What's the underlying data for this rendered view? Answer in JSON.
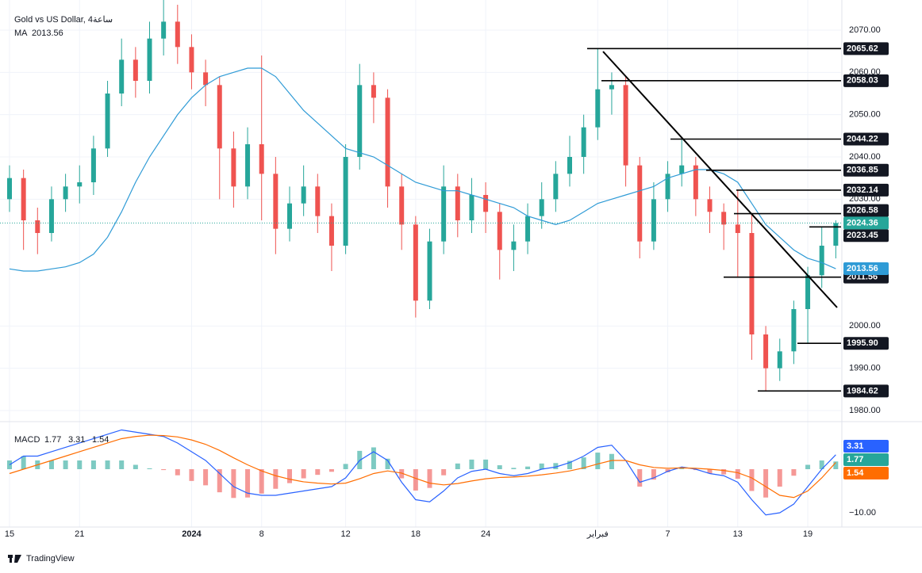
{
  "header": {
    "symbol": "Gold vs US Dollar, 4ساعة"
  },
  "footer": {
    "brand": "TradingView"
  },
  "chart_data": [
    {
      "type": "candlestick",
      "categories": [
        "15",
        null,
        null,
        null,
        null,
        "21",
        null,
        null,
        null,
        null,
        null,
        null,
        null,
        "2024",
        null,
        null,
        null,
        null,
        "8",
        null,
        null,
        null,
        null,
        null,
        "12",
        null,
        null,
        null,
        null,
        "18",
        null,
        null,
        null,
        null,
        "24",
        null,
        null,
        null,
        null,
        null,
        null,
        null,
        "فبراير",
        null,
        null,
        null,
        null,
        "7",
        null,
        null,
        null,
        null,
        "13",
        null,
        null,
        null,
        null,
        "19",
        null,
        null
      ],
      "open": [
        2030,
        2035,
        2025,
        2022,
        2030,
        2033,
        2034,
        2042,
        2055,
        2063,
        2058,
        2068,
        2072,
        2066,
        2060,
        2057,
        2042,
        2033,
        2043,
        2036,
        2023,
        2029,
        2033,
        2026,
        2019,
        2040,
        2057,
        2054,
        2033,
        2024,
        2006,
        2020,
        2033,
        2025,
        2031,
        2027,
        2018,
        2020,
        2026,
        2030,
        2036,
        2040,
        2047,
        2056,
        2057,
        2038,
        2020,
        2030,
        2036,
        2038,
        2030,
        2027,
        2024,
        2022,
        1998,
        1990,
        1994,
        2004,
        2012,
        2019
      ],
      "high": [
        2038,
        2037,
        2028,
        2033,
        2036,
        2038,
        2045,
        2058,
        2068,
        2066,
        2072,
        2080,
        2076,
        2069,
        2063,
        2059,
        2046,
        2047,
        2064,
        2040,
        2033,
        2038,
        2036,
        2029,
        2043,
        2062,
        2060,
        2056,
        2036,
        2026,
        2023,
        2038,
        2036,
        2035,
        2034,
        2029,
        2024,
        2029,
        2034,
        2039,
        2045,
        2050,
        2065.62,
        2060,
        2059,
        2040,
        2034,
        2039,
        2044.22,
        2040,
        2033,
        2029,
        2032.14,
        2026.58,
        2000,
        1997,
        2006,
        2014,
        2023.45,
        2025
      ],
      "low": [
        2027,
        2018,
        2017,
        2020,
        2027,
        2029,
        2031,
        2040,
        2052,
        2054,
        2055,
        2064,
        2062,
        2056,
        2052,
        2030,
        2028,
        2030,
        2025,
        2017,
        2020,
        2026,
        2022,
        2013,
        2017,
        2037,
        2048,
        2028,
        2018,
        2002,
        2004,
        2017,
        2021,
        2022,
        2022,
        2011,
        2013,
        2017,
        2023,
        2027,
        2033,
        2036,
        2044,
        2050,
        2033,
        2016,
        2018,
        2027,
        2033,
        2026,
        2022,
        2018,
        2011.56,
        1992,
        1984.62,
        1987,
        1991,
        1995.9,
        2009,
        2016
      ],
      "close": [
        2035,
        2025,
        2022,
        2030,
        2033,
        2034,
        2042,
        2055,
        2063,
        2058,
        2068,
        2072,
        2066,
        2060,
        2057,
        2042,
        2033,
        2043,
        2036,
        2023,
        2029,
        2033,
        2026,
        2019,
        2040,
        2057,
        2054,
        2033,
        2024,
        2006,
        2020,
        2033,
        2025,
        2031,
        2027,
        2018,
        2020,
        2026,
        2030,
        2036,
        2040,
        2047,
        2056,
        2057,
        2038,
        2020,
        2030,
        2036,
        2038,
        2030,
        2027,
        2024,
        2022,
        1998,
        1990,
        1994,
        2004,
        2012,
        2019,
        2024.36
      ],
      "up_color": "#26a69a",
      "down_color": "#ef5350",
      "ma": {
        "name": "MA",
        "color": "#2f9bd6",
        "values": [
          2013.5,
          2013,
          2013,
          2013.5,
          2014,
          2015,
          2017,
          2021,
          2027,
          2034,
          2040,
          2045,
          2050,
          2054,
          2057,
          2059,
          2060,
          2061,
          2061,
          2059,
          2055,
          2051,
          2048,
          2045,
          2042,
          2041,
          2040,
          2038,
          2036,
          2034,
          2033,
          2032,
          2032,
          2031,
          2030,
          2029,
          2028,
          2026,
          2025,
          2024,
          2025,
          2027,
          2029,
          2030,
          2031,
          2032,
          2033,
          2035,
          2036,
          2037,
          2037,
          2036,
          2034,
          2029,
          2024,
          2021,
          2018,
          2016,
          2015,
          2013.56
        ]
      },
      "levels": [
        2065.62,
        2058.03,
        2044.22,
        2036.85,
        2032.14,
        2026.58,
        2023.45,
        2011.56,
        {
          "value": 1995.9,
          "label": "1995.90"
        },
        1984.62
      ],
      "ylim": [
        1977.75,
        2077.125
      ],
      "yticks": [
        {
          "value": 2070,
          "label": "2070.00"
        },
        {
          "value": 2060,
          "label": "2060.00"
        },
        {
          "value": 2050,
          "label": "2050.00"
        },
        {
          "value": 2040,
          "label": "2040.00"
        },
        {
          "value": 2030,
          "label": "2030.00"
        },
        {
          "value": 2000,
          "label": "2000.00"
        },
        {
          "value": 1990,
          "label": "1990.00"
        },
        {
          "value": 1980,
          "label": "1980.00"
        }
      ],
      "grid": true
    },
    {
      "type": "macd",
      "title": "MACD",
      "histogram": {
        "up_color": "#26a69a",
        "down_color": "#ef5350",
        "values": [
          2,
          3,
          2,
          2,
          2,
          2,
          2,
          2,
          2,
          1,
          0.2,
          -0.2,
          -1.4,
          -2.7,
          -3.7,
          -5.3,
          -6.6,
          -6.5,
          -5.6,
          -4.5,
          -3.2,
          -2.1,
          -1.3,
          -0.6,
          1.2,
          4.2,
          5,
          2.4,
          -2.1,
          -4.9,
          -4.3,
          -1.4,
          1.3,
          2.2,
          2.2,
          0.9,
          0.3,
          0.6,
          1.3,
          1.4,
          1.9,
          2.7,
          3.8,
          3.5,
          0,
          -4,
          -2.4,
          -0.7,
          0.2,
          -0.2,
          -1,
          -1.2,
          -2.2,
          -5,
          -6.5,
          -4,
          -1.5,
          1,
          2,
          1.77
        ]
      },
      "macd": {
        "color": "#2962ff",
        "values": [
          1,
          3,
          3,
          4,
          5,
          6,
          7,
          8,
          9,
          8.5,
          8,
          7.5,
          6,
          4,
          2,
          -1,
          -4,
          -5.5,
          -6,
          -6,
          -5.5,
          -5,
          -4.5,
          -4,
          -2,
          2,
          4,
          2,
          -3,
          -7,
          -7.5,
          -5,
          -2,
          -0.5,
          0,
          -1,
          -1.5,
          -1,
          0,
          0.5,
          1.5,
          3,
          5,
          5.5,
          2,
          -3,
          -2,
          -0.5,
          0.5,
          0,
          -1,
          -1.5,
          -3,
          -7,
          -10.5,
          -10,
          -8,
          -4,
          0,
          3.31
        ]
      },
      "signal": {
        "color": "#ff6d00",
        "values": [
          -1,
          0,
          1,
          2,
          3,
          4,
          5,
          6,
          7,
          7.5,
          7.8,
          7.7,
          7.4,
          6.7,
          5.7,
          4.3,
          2.6,
          1,
          -0.4,
          -1.5,
          -2.3,
          -2.9,
          -3.2,
          -3.4,
          -3.2,
          -2.2,
          -1,
          -0.4,
          -0.9,
          -2.1,
          -3.2,
          -3.6,
          -3.3,
          -2.7,
          -2.2,
          -1.9,
          -1.8,
          -1.6,
          -1.3,
          -0.9,
          -0.4,
          0.3,
          1.2,
          2,
          2,
          1,
          0.4,
          0.2,
          0.3,
          0.2,
          0,
          -0.3,
          -0.8,
          -2,
          -4,
          -6,
          -6.5,
          -5,
          -2,
          1.54
        ]
      },
      "ylim": [
        -13.27,
        10.36
      ],
      "yticks": [
        {
          "value": -10,
          "label": "−10.00"
        }
      ]
    }
  ]
}
